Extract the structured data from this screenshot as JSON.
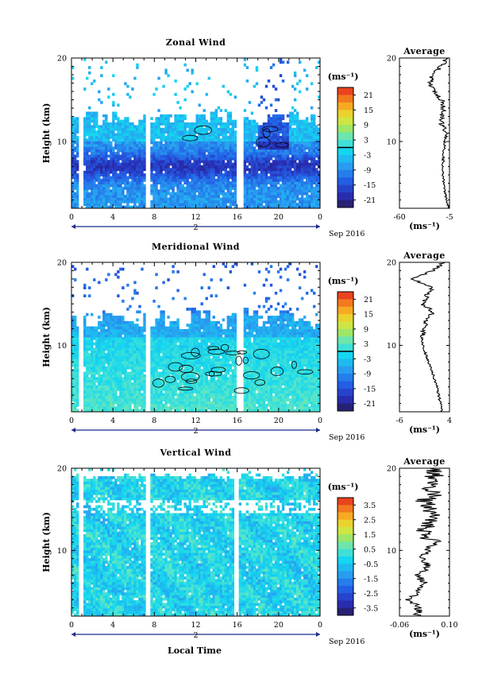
{
  "figure": {
    "xlabel": "Local Time",
    "date_label": "Sep 2016",
    "day_label": "2",
    "average_title": "Average",
    "unit_label": "(ms⁻¹)"
  },
  "chart_data": [
    {
      "type": "heatmap",
      "title": "Zonal Wind",
      "ylabel": "Height (km)",
      "xlim": [
        0,
        24
      ],
      "ylim": [
        2,
        20
      ],
      "xticks": [
        "0",
        "4",
        "8",
        "12",
        "16",
        "20",
        "0"
      ],
      "yticks": [
        "10",
        "20"
      ],
      "data_gaps_hours": [
        [
          0.7,
          1.1
        ],
        [
          7.1,
          7.5
        ],
        [
          16.0,
          16.5
        ]
      ],
      "colorbar": {
        "label": "(ms⁻¹)",
        "min": -24,
        "max": 24,
        "ticks": [
          "21",
          "15",
          "9",
          "3",
          "-3",
          "-9",
          "-15",
          "-21"
        ],
        "contour_at": 0
      },
      "average_profile": {
        "title": "Average",
        "xlabel": "(ms⁻¹)",
        "xlim": [
          -60,
          -5
        ],
        "xticks": [
          "-60",
          "-5"
        ],
        "yticks": [
          "10",
          "20"
        ],
        "height_km": [
          2,
          3,
          4,
          5,
          6,
          7,
          8,
          9,
          10,
          11,
          12,
          13,
          14,
          15,
          16,
          17,
          18,
          19,
          20
        ],
        "value": [
          -6,
          -8,
          -10,
          -11,
          -12,
          -12,
          -12,
          -11,
          -10,
          -8,
          -14,
          -13,
          -12,
          -14,
          -22,
          -26,
          -24,
          -14,
          -8
        ]
      }
    },
    {
      "type": "heatmap",
      "title": "Meridional Wind",
      "ylabel": "Height (km)",
      "xlim": [
        0,
        24
      ],
      "ylim": [
        2,
        20
      ],
      "xticks": [
        "0",
        "4",
        "8",
        "12",
        "16",
        "20",
        "0"
      ],
      "yticks": [
        "10",
        "20"
      ],
      "data_gaps_hours": [
        [
          0.7,
          1.1
        ],
        [
          7.1,
          7.5
        ],
        [
          16.0,
          16.5
        ]
      ],
      "colorbar": {
        "label": "(ms⁻¹)",
        "min": -24,
        "max": 24,
        "ticks": [
          "21",
          "15",
          "9",
          "3",
          "-3",
          "-9",
          "-15",
          "-21"
        ],
        "contour_at": 0
      },
      "average_profile": {
        "title": "Average",
        "xlabel": "(ms⁻¹)",
        "xlim": [
          -6,
          4
        ],
        "xticks": [
          "-6",
          "4"
        ],
        "yticks": [
          "10",
          "20"
        ],
        "height_km": [
          2,
          3,
          4,
          5,
          6,
          7,
          8,
          9,
          10,
          11,
          12,
          13,
          14,
          15,
          16,
          17,
          18,
          19,
          20
        ],
        "value": [
          2.5,
          2.2,
          1.8,
          1.5,
          1.0,
          0.4,
          -0.2,
          -0.8,
          -1.2,
          -1.5,
          -1.0,
          -0.5,
          0.8,
          -1.5,
          -0.5,
          0.5,
          -3.5,
          0.5,
          3.0
        ]
      }
    },
    {
      "type": "heatmap",
      "title": "Vertical Wind",
      "ylabel": "Height (km)",
      "xlim": [
        0,
        24
      ],
      "ylim": [
        2,
        20
      ],
      "xticks": [
        "0",
        "4",
        "8",
        "12",
        "16",
        "20",
        "0"
      ],
      "yticks": [
        "10",
        "20"
      ],
      "data_gaps_hours": [
        [
          0.7,
          1.1
        ],
        [
          7.1,
          7.5
        ],
        [
          15.7,
          16.2
        ]
      ],
      "colorbar": {
        "label": "(ms⁻¹)",
        "min": -4,
        "max": 4,
        "ticks": [
          "3.5",
          "2.5",
          "1.5",
          "0.5",
          "-0.5",
          "-1.5",
          "-2.5",
          "-3.5"
        ]
      },
      "average_profile": {
        "title": "Average",
        "xlabel": "(ms⁻¹)",
        "xlim": [
          -0.06,
          0.1
        ],
        "xticks": [
          "-0.06",
          "0.10"
        ],
        "yticks": [
          "10",
          "20"
        ],
        "height_km": [
          2,
          3,
          4,
          5,
          6,
          7,
          8,
          9,
          10,
          11,
          12,
          13,
          14,
          15,
          16,
          17,
          18,
          19,
          20
        ],
        "value": [
          0.0,
          0.0,
          -0.03,
          0.0,
          0.02,
          0.0,
          0.03,
          0.01,
          0.03,
          0.05,
          0.02,
          0.03,
          0.05,
          0.04,
          0.02,
          0.06,
          0.03,
          0.05,
          0.06
        ]
      }
    }
  ]
}
